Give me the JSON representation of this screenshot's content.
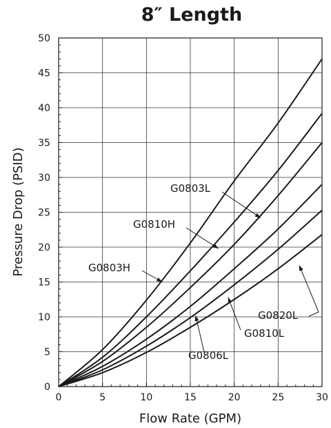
{
  "chart_data": {
    "type": "line",
    "title": "8″ Length",
    "xlabel": "Flow Rate (GPM)",
    "ylabel": "Pressure Drop (PSID)",
    "xlim": [
      0,
      30
    ],
    "ylim": [
      0,
      50
    ],
    "xticks": [
      0,
      5,
      10,
      15,
      20,
      25,
      30
    ],
    "yticks": [
      0,
      5,
      10,
      15,
      20,
      25,
      30,
      35,
      40,
      45,
      50
    ],
    "grid": true,
    "series": [
      {
        "name": "G0803H",
        "x": [
          0,
          5,
          10,
          15,
          20,
          25,
          30
        ],
        "y": [
          0,
          5.3,
          12.4,
          20.6,
          29.5,
          37.8,
          47.0
        ]
      },
      {
        "name": "G0810H",
        "x": [
          0,
          5,
          10,
          15,
          20,
          25,
          30
        ],
        "y": [
          0,
          4.2,
          10.0,
          16.6,
          23.6,
          31.0,
          39.2
        ]
      },
      {
        "name": "G0803L",
        "x": [
          0,
          5,
          10,
          15,
          20,
          25,
          30
        ],
        "y": [
          0,
          3.6,
          8.5,
          14.2,
          20.4,
          27.4,
          35.0
        ]
      },
      {
        "name": "G0806L",
        "x": [
          0,
          5,
          10,
          15,
          20,
          25,
          30
        ],
        "y": [
          0,
          2.9,
          6.8,
          11.5,
          16.9,
          22.6,
          29.0
        ]
      },
      {
        "name": "G0810L",
        "x": [
          0,
          5,
          10,
          15,
          20,
          25,
          30
        ],
        "y": [
          0,
          2.4,
          5.8,
          9.9,
          14.6,
          19.7,
          25.3
        ]
      },
      {
        "name": "G0820L",
        "x": [
          0,
          5,
          10,
          15,
          20,
          25,
          30
        ],
        "y": [
          0,
          2.0,
          4.9,
          8.5,
          12.5,
          16.9,
          21.8
        ]
      }
    ],
    "annotations": [
      {
        "text": "G0803H",
        "series": "G0803H",
        "pointer_x": 11.8,
        "pointer_y": 15.0
      },
      {
        "text": "G0810H",
        "series": "G0810H",
        "pointer_x": 18.2,
        "pointer_y": 19.8
      },
      {
        "text": "G0803L",
        "series": "G0803L",
        "pointer_x": 23.0,
        "pointer_y": 24.2
      },
      {
        "text": "G0806L",
        "series": "G0806L",
        "pointer_x": 15.6,
        "pointer_y": 10.2
      },
      {
        "text": "G0810L",
        "series": "G0810L",
        "pointer_x": 19.3,
        "pointer_y": 12.8
      },
      {
        "text": "G0820L",
        "series": "G0820L",
        "pointer_x": 27.4,
        "pointer_y": 17.4
      }
    ]
  }
}
